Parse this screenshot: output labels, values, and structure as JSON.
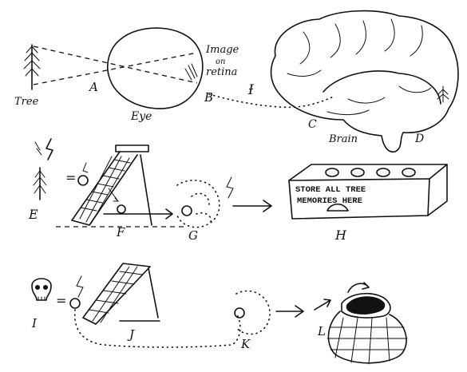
{
  "labels": {
    "tree": "Tree",
    "a": "A",
    "eye": "Eye",
    "b": "B",
    "image_line1": "Image",
    "image_line2": "on",
    "image_line3": "retina",
    "brain_hook": "Ɨ",
    "c": "C",
    "brain": "Brain",
    "d": "D",
    "e": "E",
    "f": "F",
    "g": "G",
    "h": "H",
    "i": "I",
    "j": "J",
    "k": "K",
    "l": "L"
  },
  "box": {
    "line1": "STORE ALL TREE",
    "line2": "MEMORIES HERE"
  }
}
